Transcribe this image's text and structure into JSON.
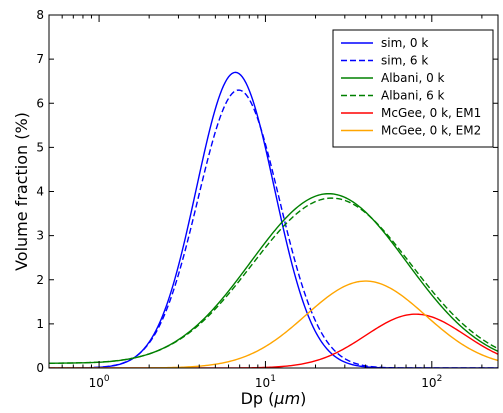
{
  "chart_data": {
    "type": "line",
    "xlabel_main": "Dp (",
    "xlabel_unit": "μm",
    "xlabel_end": ")",
    "ylabel": "Volume fraction (%)",
    "xscale": "log",
    "xlim": [
      0.5,
      250
    ],
    "ylim": [
      0,
      8
    ],
    "grid": false,
    "legend_position": "top-right",
    "x_ticks": [
      {
        "value": 1,
        "base": "10",
        "exp": "0"
      },
      {
        "value": 10,
        "base": "10",
        "exp": "1"
      },
      {
        "value": 100,
        "base": "10",
        "exp": "2"
      }
    ],
    "y_ticks": [
      {
        "value": 0,
        "label": "0"
      },
      {
        "value": 1,
        "label": "1"
      },
      {
        "value": 2,
        "label": "2"
      },
      {
        "value": 3,
        "label": "3"
      },
      {
        "value": 4,
        "label": "4"
      },
      {
        "value": 5,
        "label": "5"
      },
      {
        "value": 6,
        "label": "6"
      },
      {
        "value": 7,
        "label": "7"
      },
      {
        "value": 8,
        "label": "8"
      }
    ],
    "series": [
      {
        "name": "sim, 0 k",
        "color": "#0000ff",
        "dash": false,
        "peak": 6.7,
        "mode": 6.6,
        "sigma_log10": 0.235,
        "floor": 0
      },
      {
        "name": "sim, 6 k",
        "color": "#0000ff",
        "dash": true,
        "peak": 6.3,
        "mode": 6.9,
        "sigma_log10": 0.245,
        "floor": 0
      },
      {
        "name": "Albani, 0 k",
        "color": "#008000",
        "dash": false,
        "peak": 3.95,
        "mode": 24,
        "sigma_log10": 0.47,
        "floor": 0.1
      },
      {
        "name": "Albani, 6 k",
        "color": "#008000",
        "dash": true,
        "peak": 3.85,
        "mode": 25,
        "sigma_log10": 0.48,
        "floor": 0.1
      },
      {
        "name": "McGee, 0 k, EM1",
        "color": "#ff0000",
        "dash": false,
        "peak": 1.22,
        "mode": 80,
        "sigma_log10": 0.3,
        "floor": 0
      },
      {
        "name": "McGee, 0 k, EM2",
        "color": "#ffa500",
        "dash": false,
        "peak": 1.97,
        "mode": 40,
        "sigma_log10": 0.36,
        "floor": 0
      }
    ]
  }
}
